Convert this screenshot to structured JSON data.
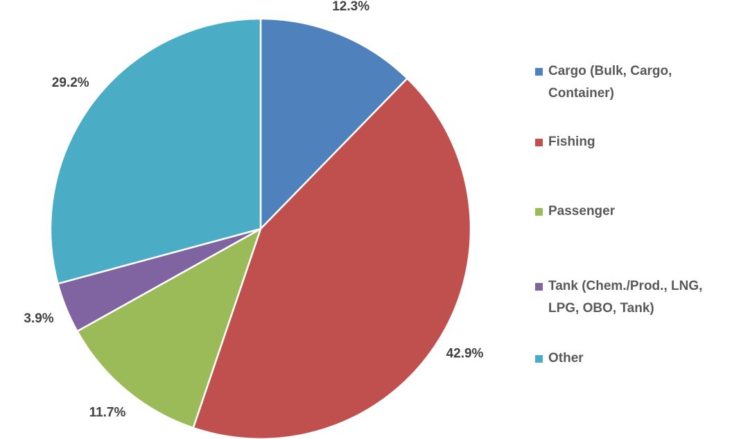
{
  "chart_data": {
    "type": "pie",
    "categories": [
      "Cargo (Bulk, Cargo, Container)",
      "Fishing",
      "Passenger",
      "Tank (Chem./Prod., LNG, LPG, OBO, Tank)",
      "Other"
    ],
    "values": [
      12.3,
      42.9,
      11.7,
      3.9,
      29.2
    ],
    "value_labels": [
      "12.3%",
      "42.9%",
      "11.7%",
      "3.9%",
      "29.2%"
    ],
    "colors": [
      "#4f81bd",
      "#c0504d",
      "#9bbb59",
      "#8064a2",
      "#4bacc6"
    ],
    "legend": "right"
  }
}
